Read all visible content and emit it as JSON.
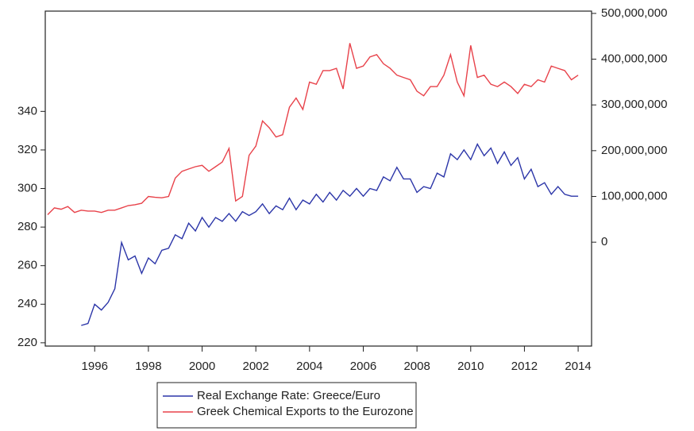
{
  "chart_data": {
    "type": "line",
    "x": [
      1994.75,
      1995,
      1995.25,
      1995.5,
      1995.75,
      1996,
      1996.25,
      1996.5,
      1996.75,
      1997,
      1997.25,
      1997.5,
      1997.75,
      1998,
      1998.25,
      1998.5,
      1998.75,
      1999,
      1999.25,
      1999.5,
      1999.75,
      2000,
      2000.25,
      2000.5,
      2000.75,
      2001,
      2001.25,
      2001.5,
      2001.75,
      2002,
      2002.25,
      2002.5,
      2002.75,
      2003,
      2003.25,
      2003.5,
      2003.75,
      2004,
      2004.25,
      2004.5,
      2004.75,
      2005,
      2005.25,
      2005.5,
      2005.75,
      2006,
      2006.25,
      2006.5,
      2006.75,
      2007,
      2007.25,
      2007.5,
      2007.75,
      2008,
      2008.25,
      2008.5,
      2008.75,
      2009,
      2009.25,
      2009.5,
      2009.75,
      2010,
      2010.25,
      2010.5,
      2010.75,
      2011,
      2011.25,
      2011.5,
      2011.75,
      2012,
      2012.25,
      2012.5,
      2012.75,
      2013,
      2013.25,
      2013.5,
      2013.75,
      2014,
      2014.25,
      2014.5
    ],
    "series": [
      {
        "name": "Real Exchange Rate: Greece/Euro",
        "color": "#2b35a8",
        "values": [
          null,
          null,
          null,
          null,
          null,
          229,
          230,
          240,
          237,
          241,
          248,
          272,
          263,
          265,
          256,
          264,
          261,
          268,
          269,
          276,
          274,
          282,
          278,
          285,
          280,
          285,
          283,
          287,
          283,
          288,
          286,
          288,
          292,
          287,
          291,
          289,
          295,
          289,
          294,
          292,
          297,
          293,
          298,
          294,
          299,
          296,
          300,
          296,
          300,
          299,
          306,
          304,
          311,
          305,
          305,
          298,
          301,
          300,
          308,
          306,
          318,
          315,
          320,
          315,
          323,
          317,
          321,
          313,
          319,
          312,
          316,
          305,
          310,
          301,
          303,
          297,
          301,
          297,
          296,
          296
        ]
      },
      {
        "name": "Greek Chemical Exports to the Eurozone",
        "color": "#e8424a",
        "axis": "y2",
        "values": [
          60000000.0,
          75000000.0,
          72000000.0,
          78000000.0,
          65000000.0,
          70000000.0,
          68000000.0,
          68000000.0,
          65000000.0,
          70000000.0,
          70000000.0,
          75000000.0,
          80000000.0,
          82000000.0,
          85000000.0,
          100000000.0,
          98000000.0,
          97000000.0,
          100000000.0,
          140000000.0,
          155000000.0,
          160000000.0,
          165000000.0,
          168000000.0,
          155000000.0,
          165000000.0,
          175000000.0,
          205000000.0,
          90000000.0,
          100000000.0,
          190000000.0,
          210000000.0,
          265000000.0,
          250000000.0,
          230000000.0,
          235000000.0,
          295000000.0,
          315000000.0,
          290000000.0,
          350000000.0,
          345000000.0,
          375000000.0,
          375000000.0,
          380000000.0,
          335000000.0,
          435000000.0,
          380000000.0,
          385000000.0,
          405000000.0,
          410000000.0,
          390000000.0,
          380000000.0,
          365000000.0,
          360000000.0,
          355000000.0,
          330000000.0,
          320000000.0,
          340000000.0,
          340000000.0,
          365000000.0,
          410000000.0,
          350000000.0,
          320000000.0,
          430000000.0,
          360000000.0,
          365000000.0,
          345000000.0,
          340000000.0,
          350000000.0,
          340000000.0,
          325000000.0,
          345000000.0,
          340000000.0,
          355000000.0,
          350000000.0,
          385000000.0,
          380000000.0,
          375000000.0,
          355000000.0,
          365000000.0
        ]
      }
    ],
    "xlim": [
      1994.66,
      2015.0
    ],
    "xticks": [
      {
        "value": 1996.5,
        "label": "1996"
      },
      {
        "value": 1998.5,
        "label": "1998"
      },
      {
        "value": 2000.5,
        "label": "2000"
      },
      {
        "value": 2002.5,
        "label": "2002"
      },
      {
        "value": 2004.5,
        "label": "2004"
      },
      {
        "value": 2006.5,
        "label": "2006"
      },
      {
        "value": 2008.5,
        "label": "2008"
      },
      {
        "value": 2010.5,
        "label": "2010"
      },
      {
        "value": 2012.5,
        "label": "2012"
      },
      {
        "value": 2014.5,
        "label": "2014"
      }
    ],
    "ylim": [
      218.3,
      392
    ],
    "yticks": [
      220,
      240,
      260,
      280,
      300,
      320,
      340
    ],
    "y2lim": [
      -227000000,
      505000000
    ],
    "y2ticks": [
      0,
      {
        "value": 100000000,
        "label": "100,000,000"
      },
      {
        "value": 200000000,
        "label": "200,000,000"
      },
      {
        "value": 300000000,
        "label": "300,000,000"
      },
      {
        "value": 400000000,
        "label": "400,000,000"
      },
      {
        "value": 500000000,
        "label": "500,000,000"
      }
    ],
    "legend": "bottom"
  }
}
